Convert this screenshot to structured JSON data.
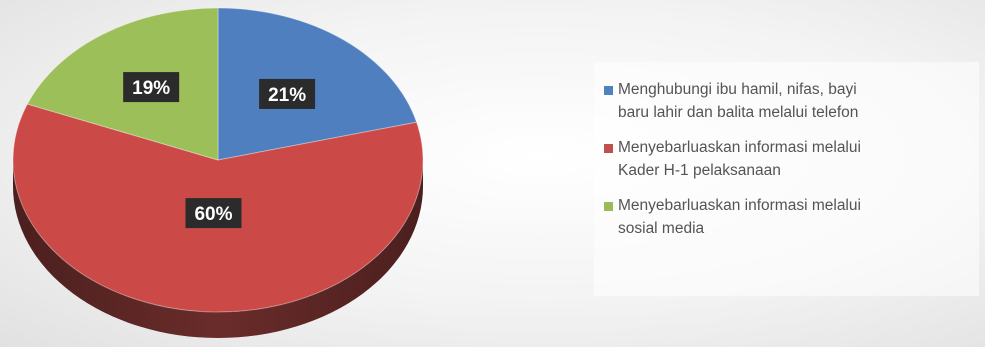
{
  "chart_data": {
    "type": "pie",
    "slices": [
      {
        "label": "Menghubungi ibu hamil, nifas, bayi baru lahir dan balita melalui telefon",
        "value": 21,
        "display": "21%",
        "color": "#4f81bd",
        "top_color": "#4f7fbf"
      },
      {
        "label": "Menyebarluaskan informasi melalui Kader H-1 pelaksanaan",
        "value": 60,
        "display": "60%",
        "color": "#c0504d",
        "top_color": "#cb4a47"
      },
      {
        "label": "Menyebarluaskan informasi melalui sosial media",
        "value": 19,
        "display": "19%",
        "color": "#9bbb59",
        "top_color": "#9dbf5a"
      }
    ],
    "legend_position": "right",
    "legend": {
      "items": [
        {
          "lines": [
            "Menghubungi ibu hamil, nifas, bayi",
            "baru lahir dan balita melalui telefon"
          ],
          "color": "#4f81bd"
        },
        {
          "lines": [
            "Menyebarluaskan informasi melalui",
            "Kader H-1 pelaksanaan"
          ],
          "color": "#c0504d"
        },
        {
          "lines": [
            "Menyebarluaskan informasi melalui",
            "sosial media"
          ],
          "color": "#9bbb59"
        }
      ]
    },
    "style": {
      "three_d": true,
      "label_box_color": "#2b2b2b",
      "label_text_color": "#ffffff",
      "background": "#f1f1f1"
    }
  }
}
